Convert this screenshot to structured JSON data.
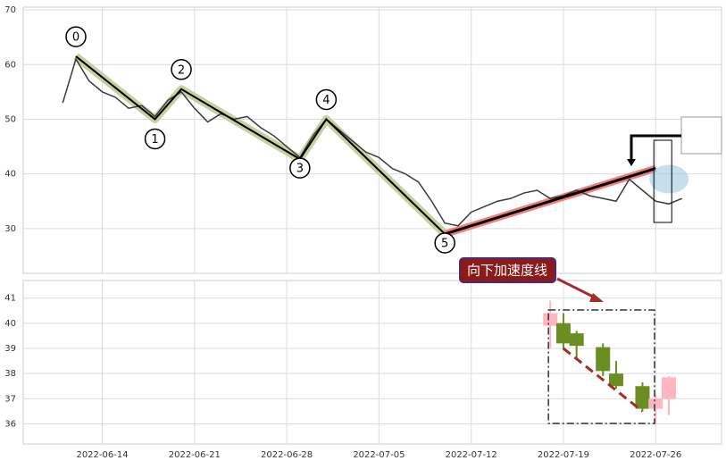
{
  "chart_data": [
    {
      "type": "line",
      "x": [
        "2022-06-11",
        "2022-06-12",
        "2022-06-13",
        "2022-06-14",
        "2022-06-15",
        "2022-06-16",
        "2022-06-17",
        "2022-06-18",
        "2022-06-19",
        "2022-06-20",
        "2022-06-21",
        "2022-06-22",
        "2022-06-23",
        "2022-06-24",
        "2022-06-25",
        "2022-06-26",
        "2022-06-27",
        "2022-06-28",
        "2022-06-29",
        "2022-06-30",
        "2022-07-01",
        "2022-07-02",
        "2022-07-03",
        "2022-07-04",
        "2022-07-05",
        "2022-07-06",
        "2022-07-07",
        "2022-07-08",
        "2022-07-09",
        "2022-07-10",
        "2022-07-11",
        "2022-07-12",
        "2022-07-13",
        "2022-07-14",
        "2022-07-15",
        "2022-07-16",
        "2022-07-17",
        "2022-07-18",
        "2022-07-19",
        "2022-07-20",
        "2022-07-21",
        "2022-07-22",
        "2022-07-23",
        "2022-07-24",
        "2022-07-25",
        "2022-07-26",
        "2022-07-27",
        "2022-07-28"
      ],
      "series": [
        {
          "color": "#3a3a3a",
          "values": [
            53,
            61,
            57,
            55,
            54,
            52,
            52.5,
            50.5,
            53.5,
            55,
            52,
            49.5,
            51,
            50,
            50.5,
            48.5,
            47,
            45,
            43,
            47,
            50,
            48,
            46,
            44,
            43,
            41,
            40,
            38.5,
            35,
            31,
            30.5,
            33,
            34,
            35,
            35.5,
            36.5,
            37,
            35.5,
            36,
            37,
            36,
            35.5,
            35,
            39,
            37,
            35,
            34.5,
            35.5
          ]
        }
      ],
      "waves": [
        {
          "label": "0",
          "x": "2022-06-12",
          "value": 61.5
        },
        {
          "label": "1",
          "x": "2022-06-18",
          "value": 50
        },
        {
          "label": "2",
          "x": "2022-06-20",
          "value": 55.5
        },
        {
          "label": "3",
          "x": "2022-06-29",
          "value": 42.7
        },
        {
          "label": "4",
          "x": "2022-07-01",
          "value": 50
        },
        {
          "label": "5",
          "x": "2022-07-10",
          "value": 29
        }
      ],
      "wave_color": "#c5d2a0",
      "trend_line": {
        "x": [
          "2022-07-10",
          "2022-07-26"
        ],
        "values": [
          29,
          41
        ],
        "color": "#f08080"
      },
      "xlim": [
        "2022-06-08",
        "2022-07-31"
      ],
      "ylim": [
        21.8,
        70.5
      ],
      "yticks": [
        30,
        40,
        50,
        60,
        70
      ],
      "grid": true
    },
    {
      "type": "candlestick",
      "x": [
        "2022-07-18",
        "2022-07-19",
        "2022-07-20",
        "2022-07-22",
        "2022-07-23",
        "2022-07-25",
        "2022-07-26",
        "2022-07-27"
      ],
      "open": [
        39.9,
        40.0,
        39.6,
        39.05,
        38.0,
        37.5,
        36.6,
        37.0
      ],
      "close": [
        40.4,
        39.2,
        39.1,
        38.1,
        37.5,
        36.6,
        37.0,
        37.85
      ],
      "high": [
        40.9,
        40.4,
        39.7,
        39.2,
        38.5,
        37.65,
        37.2,
        37.9
      ],
      "low": [
        39.0,
        38.95,
        38.6,
        37.9,
        37.4,
        36.5,
        36.0,
        36.35
      ],
      "up_color": "#ffb6c1",
      "down_color": "#6b8e23",
      "annotation": "向下加速度线",
      "trend_line": {
        "x": [
          "2022-07-19",
          "2022-07-25"
        ],
        "values": [
          39.0,
          36.5
        ],
        "color": "#a52a2a"
      },
      "xlim": [
        "2022-06-08",
        "2022-07-31"
      ],
      "xticks": [
        "2022-06-14",
        "2022-06-21",
        "2022-06-28",
        "2022-07-05",
        "2022-07-12",
        "2022-07-19",
        "2022-07-26"
      ],
      "ylim": [
        35.2,
        41.7
      ],
      "yticks": [
        36,
        37,
        38,
        39,
        40,
        41
      ],
      "grid": true
    }
  ]
}
